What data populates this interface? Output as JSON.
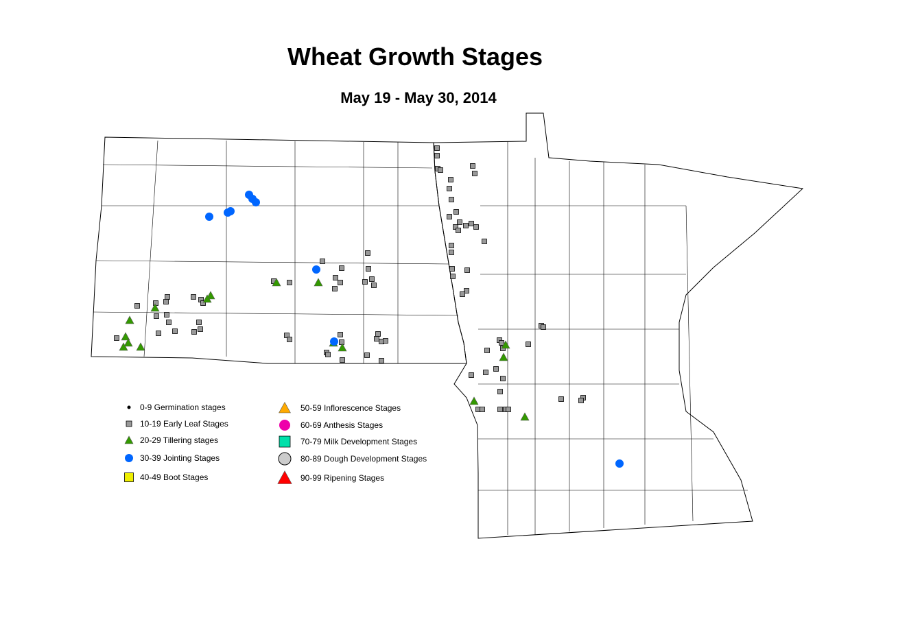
{
  "title": "Wheat Growth Stages",
  "subtitle": "May 19 - May 30, 2014",
  "legend": [
    {
      "label": "0-9 Germination stages",
      "shape": "dot",
      "color": "#000000"
    },
    {
      "label": "10-19 Early Leaf Stages",
      "shape": "square",
      "color": "#999999"
    },
    {
      "label": "20-29 Tillering stages",
      "shape": "triangle",
      "color": "#339900"
    },
    {
      "label": "30-39 Jointing Stages",
      "shape": "circle",
      "color": "#0066ff"
    },
    {
      "label": "40-49 Boot Stages",
      "shape": "square",
      "color": "#eeee00"
    },
    {
      "label": "50-59 Inflorescence Stages",
      "shape": "triangle",
      "color": "#ffaa00"
    },
    {
      "label": "60-69 Anthesis Stages",
      "shape": "circle",
      "color": "#ee00aa"
    },
    {
      "label": "70-79 Milk Development Stages",
      "shape": "square",
      "color": "#00e0aa"
    },
    {
      "label": "80-89 Dough Development Stages",
      "shape": "circle",
      "color": "#cccccc"
    },
    {
      "label": "90-99 Ripening Stages",
      "shape": "triangle",
      "color": "#ff0000"
    }
  ]
}
